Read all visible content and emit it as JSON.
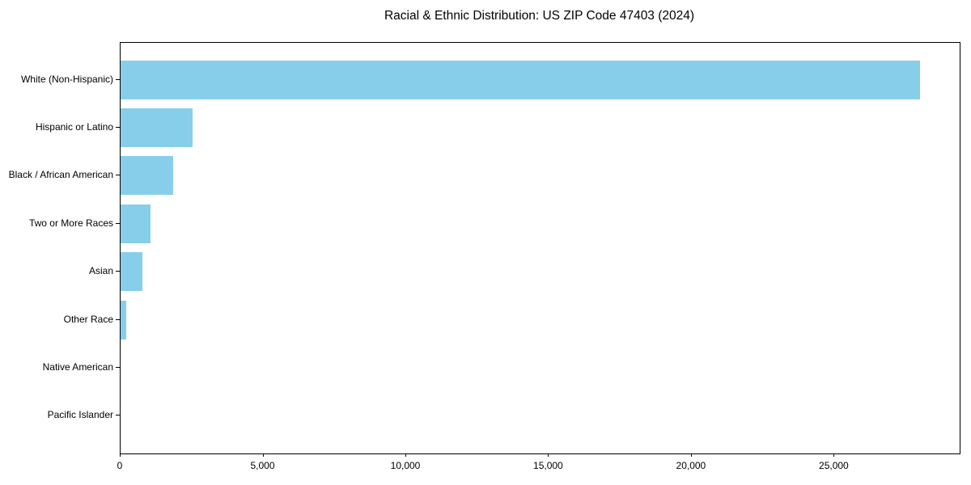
{
  "chart_data": {
    "type": "bar",
    "orientation": "horizontal",
    "title": "Racial & Ethnic Distribution: US ZIP Code 47403 (2024)",
    "categories": [
      "White (Non-Hispanic)",
      "Hispanic or Latino",
      "Black / African American",
      "Two or More Races",
      "Asian",
      "Other Race",
      "Native American",
      "Pacific Islander"
    ],
    "values": [
      28000,
      2520,
      1830,
      1060,
      750,
      210,
      0,
      0
    ],
    "xlabel": "",
    "ylabel": "",
    "xlim": [
      0,
      29380
    ],
    "xticks": [
      0,
      5000,
      10000,
      15000,
      20000,
      25000
    ],
    "xtick_labels": [
      "0",
      "5,000",
      "10,000",
      "15,000",
      "20,000",
      "25,000"
    ],
    "bar_color": "#87CEEB",
    "axis_color": "#000000",
    "text_color": "#000000",
    "grid": false,
    "legend": null
  }
}
